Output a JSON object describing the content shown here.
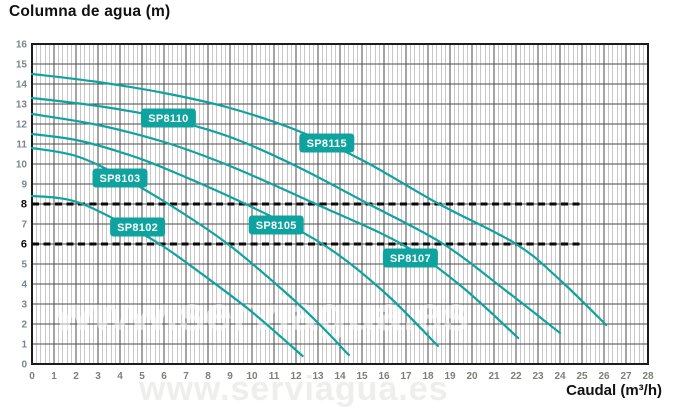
{
  "chart_data": {
    "type": "line",
    "title": "Columna de agua (m)",
    "xlabel": "Caudal (m³/h)",
    "xlim": [
      0,
      28
    ],
    "ylim": [
      0,
      16
    ],
    "x_tick_step": 1,
    "y_tick_step": 1,
    "x_minor_divisions": 5,
    "grid": true,
    "legend_position": "labels-on-curves",
    "emphasized_y_ticks": [
      8,
      6
    ],
    "reference_lines": [
      {
        "y": 8,
        "x_start": 0,
        "x_end": 25,
        "style": "dashed"
      },
      {
        "y": 6,
        "x_start": 0,
        "x_end": 25,
        "style": "dashed"
      }
    ],
    "series": [
      {
        "name": "SP8102",
        "label_at": [
          4.8,
          6.85
        ],
        "points": [
          [
            0,
            8.4
          ],
          [
            1.2,
            8.3
          ],
          [
            2.3,
            8.0
          ],
          [
            4,
            7.1
          ],
          [
            5.8,
            6.0
          ],
          [
            7.6,
            4.6
          ],
          [
            10,
            2.6
          ],
          [
            12.3,
            0.4
          ]
        ]
      },
      {
        "name": "SP8103",
        "label_at": [
          4.0,
          9.3
        ],
        "points": [
          [
            0,
            10.8
          ],
          [
            2,
            10.4
          ],
          [
            4,
            9.4
          ],
          [
            6.2,
            8.0
          ],
          [
            8.9,
            6.0
          ],
          [
            11.5,
            3.6
          ],
          [
            13.1,
            1.95
          ],
          [
            14.4,
            0.45
          ]
        ]
      },
      {
        "name": "SP8105",
        "label_at": [
          11.1,
          6.95
        ],
        "points": [
          [
            0,
            11.5
          ],
          [
            2,
            11.2
          ],
          [
            4,
            10.6
          ],
          [
            6,
            9.8
          ],
          [
            9.7,
            8.0
          ],
          [
            13.2,
            6.0
          ],
          [
            16,
            3.6
          ],
          [
            18.45,
            0.9
          ]
        ]
      },
      {
        "name": "SP8107",
        "label_at": [
          17.2,
          5.3
        ],
        "points": [
          [
            0,
            12.5
          ],
          [
            3,
            11.95
          ],
          [
            6,
            11.1
          ],
          [
            9,
            9.9
          ],
          [
            12.9,
            8.0
          ],
          [
            16.8,
            6.0
          ],
          [
            19.5,
            3.9
          ],
          [
            22.1,
            1.3
          ]
        ]
      },
      {
        "name": "SP8110",
        "label_at": [
          6.2,
          12.3
        ],
        "points": [
          [
            0,
            13.3
          ],
          [
            3,
            12.9
          ],
          [
            6,
            12.3
          ],
          [
            9,
            11.35
          ],
          [
            12,
            9.9
          ],
          [
            15.3,
            8.0
          ],
          [
            18.7,
            6.0
          ],
          [
            21.5,
            3.7
          ],
          [
            24,
            1.55
          ]
        ]
      },
      {
        "name": "SP8115",
        "label_at": [
          13.4,
          11.05
        ],
        "points": [
          [
            0,
            14.5
          ],
          [
            3,
            14.1
          ],
          [
            6,
            13.55
          ],
          [
            9,
            12.8
          ],
          [
            12,
            11.7
          ],
          [
            15,
            10.2
          ],
          [
            18.5,
            8.0
          ],
          [
            22,
            6.0
          ],
          [
            24,
            4.2
          ],
          [
            26.1,
            1.95
          ]
        ]
      }
    ]
  },
  "colors": {
    "curve": "#0fa3a0",
    "series_label_bg": "#0fa3a0",
    "series_label_text": "#ffffff",
    "grid_major": "#4a4a4a",
    "grid_minor": "#909090",
    "plot_border": "#1c1c1c",
    "y_axis_text": "#7b858d",
    "x_axis_text": "#7b8078",
    "emphasis_text": "#0a0a0a",
    "reference_line": "#0a0a0a",
    "inner_watermark": "#ffffff"
  },
  "watermark": {
    "text": "www.serviagua.es"
  }
}
